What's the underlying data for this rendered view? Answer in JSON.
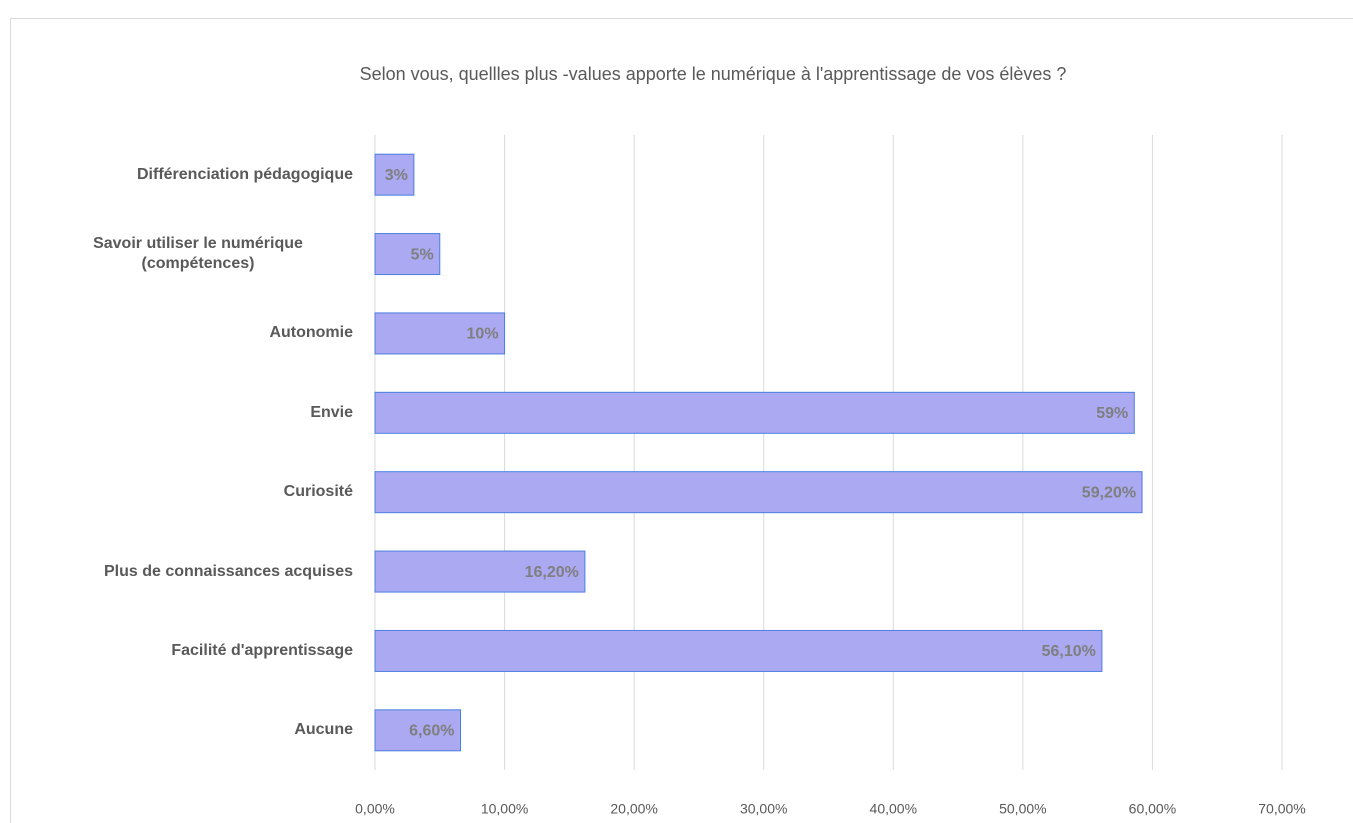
{
  "chart_data": {
    "type": "bar",
    "orientation": "horizontal",
    "title": "Selon vous, quellles plus -values apporte le numérique à l'apprentissage de vos élèves ?",
    "categories": [
      "Différenciation pédagogique",
      "Savoir utiliser le numérique (compétences)",
      "Autonomie",
      "Envie",
      "Curiosité",
      "Plus de connaissances acquises",
      "Facilité d'apprentissage",
      "Aucune"
    ],
    "values": [
      3,
      5,
      10,
      58.6,
      59.2,
      16.2,
      56.1,
      6.6
    ],
    "value_labels": [
      "3%",
      "5%",
      "10%",
      "59%",
      "59,20%",
      "16,20%",
      "56,10%",
      "6,60%"
    ],
    "color": "#aaa9f2",
    "edge_color": "#4a7fe0",
    "xlim": [
      0,
      70
    ],
    "xticks": [
      {
        "value": 0,
        "label": "0,00%"
      },
      {
        "value": 10,
        "label": "10,00%"
      },
      {
        "value": 20,
        "label": "20,00%"
      },
      {
        "value": 30,
        "label": "30,00%"
      },
      {
        "value": 40,
        "label": "40,00%"
      },
      {
        "value": 50,
        "label": "50,00%"
      },
      {
        "value": 60,
        "label": "60,00%"
      },
      {
        "value": 70,
        "label": "70,00%"
      }
    ],
    "grid": true
  }
}
